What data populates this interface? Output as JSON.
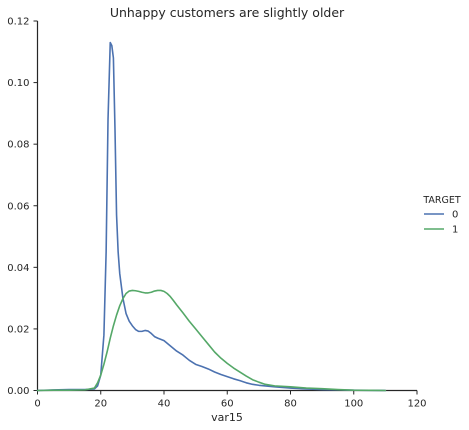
{
  "chart_data": {
    "type": "line",
    "title": "Unhappy customers are slightly older",
    "xlabel": "var15",
    "ylabel": "",
    "xlim": [
      0,
      120
    ],
    "ylim": [
      0,
      0.12
    ],
    "x_ticks": [
      0,
      20,
      40,
      60,
      80,
      100,
      120
    ],
    "y_ticks": [
      0.0,
      0.02,
      0.04,
      0.06,
      0.08,
      0.1,
      0.12
    ],
    "x_tick_labels": [
      "0",
      "20",
      "40",
      "60",
      "80",
      "100",
      "120"
    ],
    "y_tick_labels": [
      "0.00",
      "0.02",
      "0.04",
      "0.06",
      "0.08",
      "0.10",
      "0.12"
    ],
    "grid": false,
    "legend": {
      "title": "TARGET",
      "placement": "right"
    },
    "series": [
      {
        "name": "0",
        "color": "#4c72b0",
        "x": [
          0,
          5,
          10,
          15,
          18,
          19,
          20,
          21,
          21.7,
          22.3,
          23,
          23.5,
          24,
          24.5,
          25,
          25.5,
          26,
          26.5,
          27,
          28,
          29,
          30,
          31,
          32,
          33,
          34,
          35,
          36,
          37,
          38,
          40,
          42,
          44,
          46,
          48,
          50,
          52,
          54,
          56,
          58,
          60,
          62,
          64,
          66,
          68,
          70,
          75,
          80,
          85,
          90,
          95,
          100,
          105,
          110
        ],
        "y": [
          0.0,
          0.0002,
          0.0003,
          0.0003,
          0.0005,
          0.0015,
          0.005,
          0.018,
          0.045,
          0.088,
          0.113,
          0.112,
          0.108,
          0.085,
          0.057,
          0.045,
          0.038,
          0.034,
          0.03,
          0.025,
          0.0225,
          0.021,
          0.0198,
          0.0192,
          0.0192,
          0.0195,
          0.0193,
          0.0185,
          0.0175,
          0.017,
          0.0162,
          0.0145,
          0.0128,
          0.0115,
          0.0098,
          0.0085,
          0.0078,
          0.007,
          0.006,
          0.0052,
          0.0045,
          0.0038,
          0.0032,
          0.0025,
          0.002,
          0.0017,
          0.0012,
          0.0008,
          0.0005,
          0.0003,
          0.0002,
          0.0001,
          5e-05,
          0.0
        ]
      },
      {
        "name": "1",
        "color": "#55a868",
        "x": [
          0,
          5,
          10,
          15,
          18,
          19,
          20,
          21,
          22,
          23,
          24,
          25,
          26,
          27,
          28,
          29,
          30,
          31,
          32,
          33,
          34,
          35,
          36,
          37,
          38,
          39,
          40,
          41,
          42,
          43,
          44,
          46,
          48,
          50,
          52,
          54,
          56,
          58,
          60,
          62,
          64,
          66,
          68,
          70,
          72,
          75,
          80,
          85,
          90,
          95,
          100,
          105,
          110
        ],
        "y": [
          0.0,
          0.0001,
          0.0001,
          0.0002,
          0.0008,
          0.0025,
          0.005,
          0.0085,
          0.0125,
          0.017,
          0.021,
          0.0245,
          0.0275,
          0.0298,
          0.0315,
          0.0323,
          0.0325,
          0.0324,
          0.0322,
          0.0319,
          0.0317,
          0.0317,
          0.0319,
          0.0323,
          0.0325,
          0.0325,
          0.0322,
          0.0315,
          0.0305,
          0.0292,
          0.0278,
          0.0252,
          0.0225,
          0.02,
          0.0175,
          0.015,
          0.0125,
          0.0105,
          0.0088,
          0.0073,
          0.006,
          0.0047,
          0.0035,
          0.0027,
          0.002,
          0.0015,
          0.0012,
          0.0008,
          0.0006,
          0.0003,
          0.0001,
          5e-05,
          0.0
        ]
      }
    ]
  }
}
